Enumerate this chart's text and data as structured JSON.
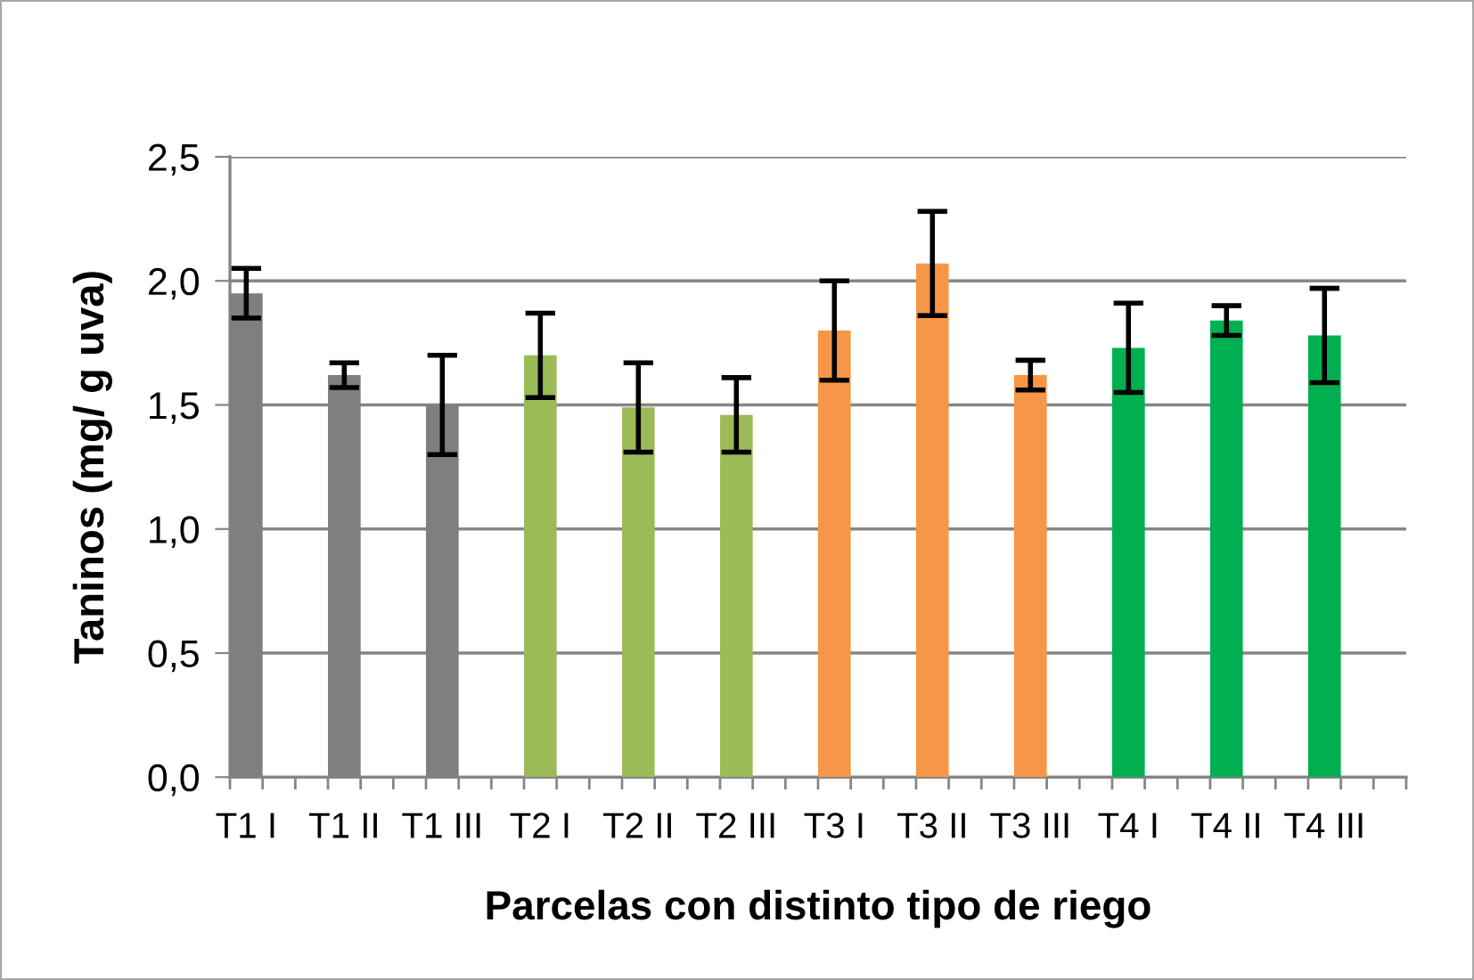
{
  "chart_data": {
    "type": "bar",
    "xlabel": "Parcelas con distinto tipo de riego",
    "ylabel": "Taninos (mg/ g uva)",
    "categories": [
      "T1 I",
      "T1 II",
      "T1 III",
      "T2 I",
      "T2 II",
      "T2 III",
      "T3 I",
      "T3 II",
      "T3 III",
      "T4 I",
      "T4 II",
      "T4 III"
    ],
    "values": [
      1.95,
      1.62,
      1.5,
      1.7,
      1.49,
      1.46,
      1.8,
      2.07,
      1.62,
      1.73,
      1.84,
      1.78
    ],
    "errors": [
      0.1,
      0.05,
      0.2,
      0.17,
      0.18,
      0.15,
      0.2,
      0.21,
      0.06,
      0.18,
      0.06,
      0.19
    ],
    "colors": [
      "#7f7f7f",
      "#7f7f7f",
      "#7f7f7f",
      "#9bbb59",
      "#9bbb59",
      "#9bbb59",
      "#f79646",
      "#f79646",
      "#f79646",
      "#00b050",
      "#00b050",
      "#00b050"
    ],
    "ylim": [
      0,
      2.5
    ],
    "yticks": [
      {
        "value": 0,
        "label": "0,0"
      },
      {
        "value": 0.5,
        "label": "0,5"
      },
      {
        "value": 1,
        "label": "1,0"
      },
      {
        "value": 1.5,
        "label": "1,5"
      },
      {
        "value": 2,
        "label": "2,0"
      },
      {
        "value": 2.5,
        "label": "2,5"
      }
    ],
    "grid": "y"
  }
}
